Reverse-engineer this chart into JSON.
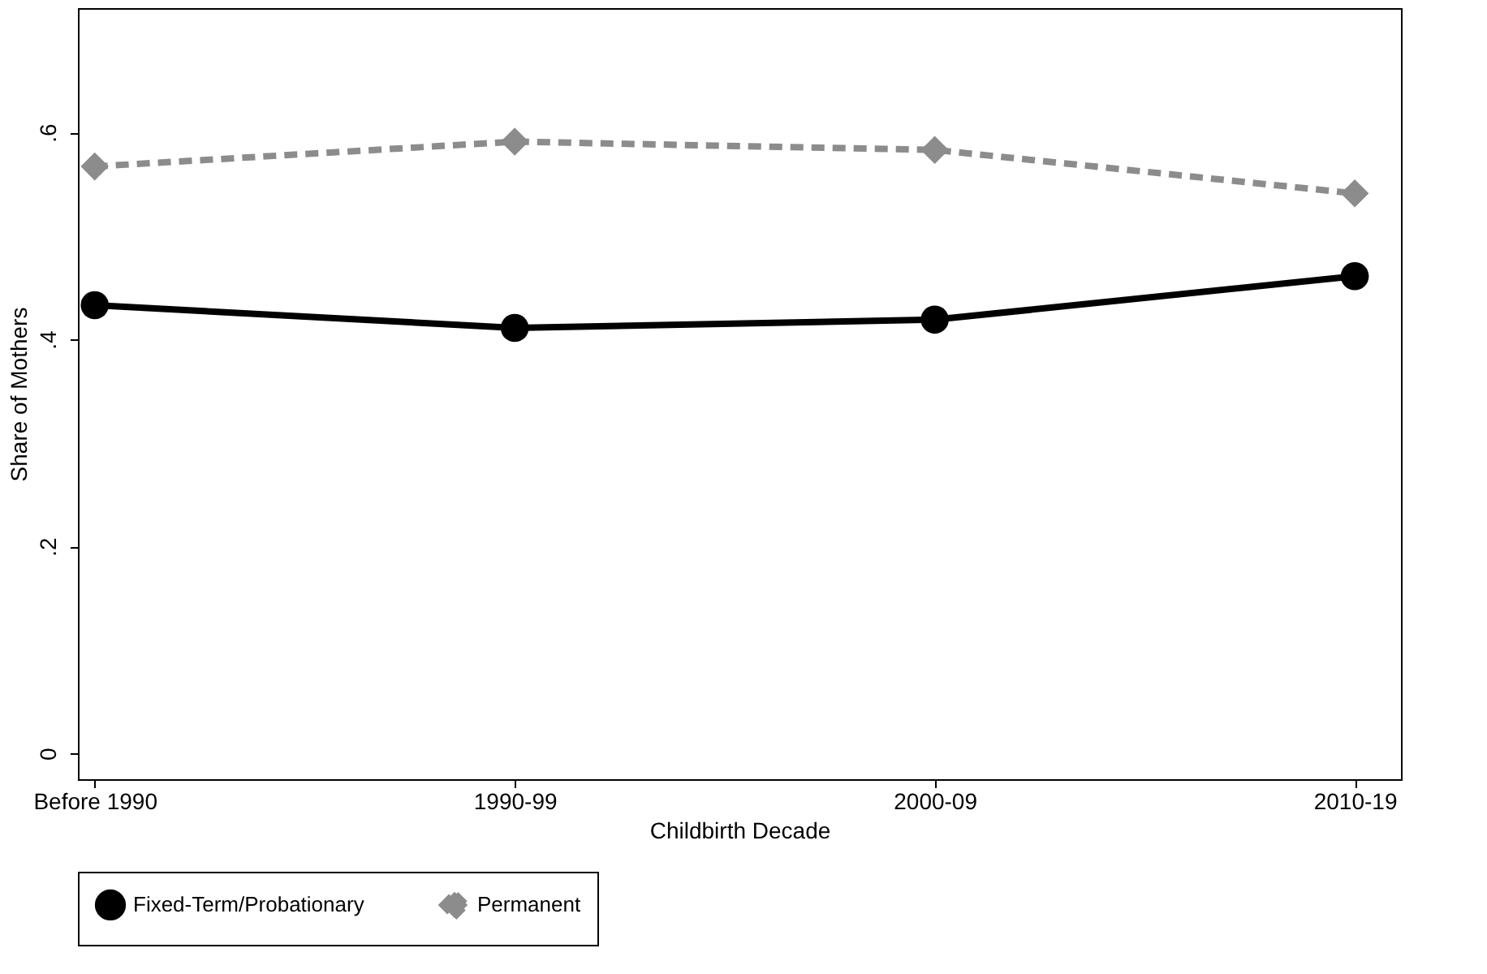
{
  "chart_data": {
    "type": "line",
    "xlabel": "Childbirth Decade",
    "ylabel": "Share of Mothers",
    "categories": [
      "Before 1990",
      "1990-99",
      "2000-09",
      "2010-19"
    ],
    "series": [
      {
        "name": "Fixed-Term/Probationary",
        "color": "#000000",
        "marker": "circle",
        "line_style": "solid",
        "values": [
          0.433,
          0.411,
          0.419,
          0.461
        ]
      },
      {
        "name": "Permanent",
        "color": "#8c8c8c",
        "marker": "diamond",
        "line_style": "dashed",
        "values": [
          0.567,
          0.591,
          0.583,
          0.541
        ]
      }
    ],
    "ylim": [
      -0.025,
      0.72
    ],
    "yticks": [
      {
        "value": 0,
        "label": "0"
      },
      {
        "value": 0.2,
        "label": ".2"
      },
      {
        "value": 0.4,
        "label": ".4"
      },
      {
        "value": 0.6,
        "label": ".6"
      }
    ],
    "grid": false,
    "legend": "bottom"
  }
}
